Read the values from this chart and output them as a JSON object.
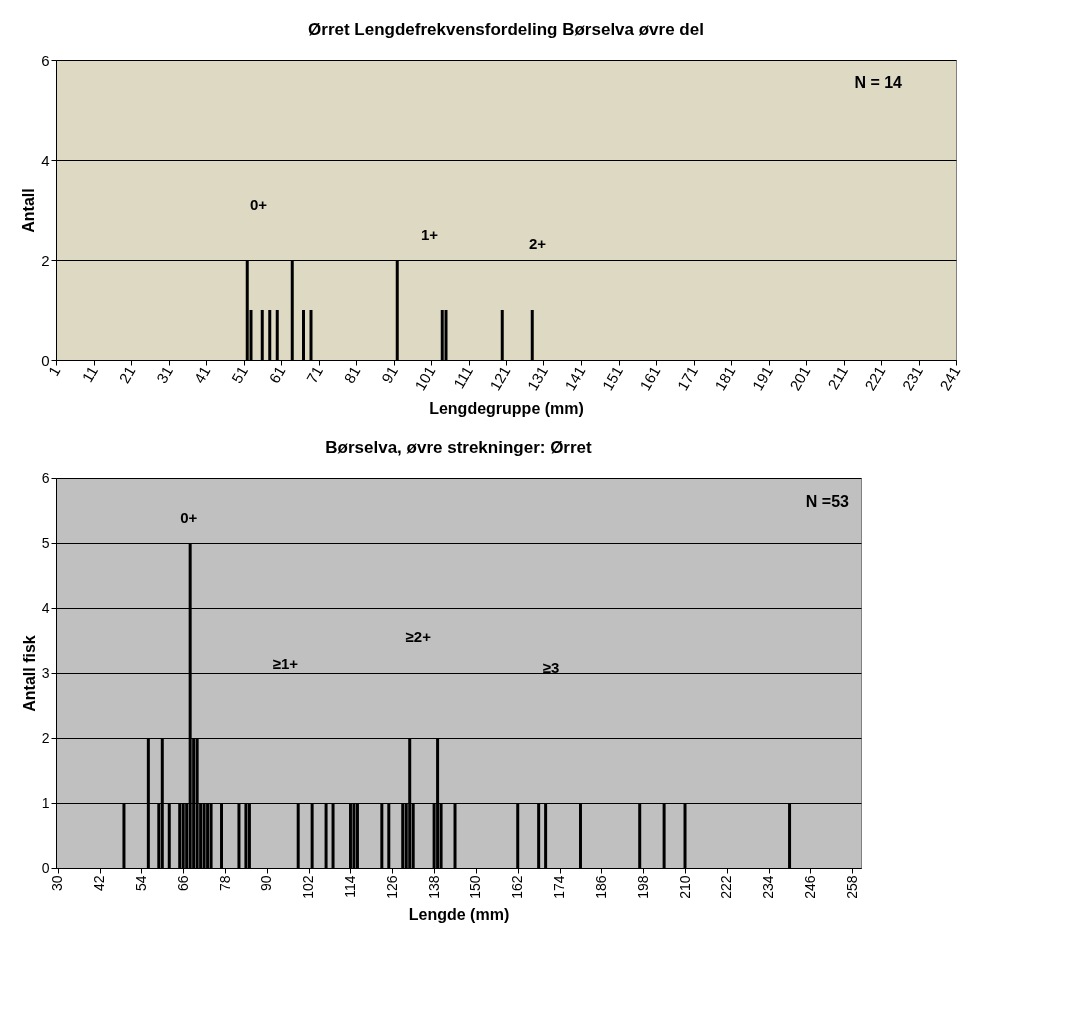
{
  "chart_data": [
    {
      "type": "bar",
      "title": "Ørret Lengdefrekvensfordeling Børselva øvre del",
      "xlabel": "Lengdegruppe (mm)",
      "ylabel": "Antall",
      "color": "#000000",
      "x": [
        52,
        53,
        56,
        58,
        60,
        64,
        67,
        69,
        92,
        104,
        105,
        120,
        128
      ],
      "values": [
        2,
        1,
        1,
        1,
        1,
        2,
        1,
        1,
        2,
        1,
        1,
        1,
        1
      ],
      "xlim": [
        1,
        241
      ],
      "xticks": [
        1,
        11,
        21,
        31,
        41,
        51,
        61,
        71,
        81,
        91,
        101,
        111,
        121,
        131,
        141,
        151,
        161,
        171,
        181,
        191,
        201,
        211,
        221,
        231,
        241
      ],
      "ylim": [
        0,
        6
      ],
      "yticks": [
        0,
        2,
        4,
        6
      ],
      "grid": "y",
      "annotations": [
        "N = 14",
        "0+",
        "1+",
        "2+"
      ]
    },
    {
      "type": "bar",
      "title": "Børselva, øvre strekninger: Ørret",
      "xlabel": "Lengde (mm)",
      "ylabel": "Antall fisk",
      "color": "#000000",
      "x": [
        49,
        56,
        59,
        60,
        62,
        65,
        66,
        67,
        68,
        69,
        70,
        71,
        72,
        73,
        74,
        77,
        82,
        84,
        85,
        99,
        103,
        107,
        109,
        114,
        115,
        116,
        123,
        125,
        129,
        130,
        131,
        132,
        138,
        139,
        140,
        144,
        162,
        168,
        170,
        180,
        197,
        204,
        210,
        240
      ],
      "values": [
        1,
        2,
        1,
        2,
        1,
        1,
        1,
        1,
        5,
        2,
        2,
        1,
        1,
        1,
        1,
        1,
        1,
        1,
        1,
        1,
        1,
        1,
        1,
        1,
        1,
        1,
        1,
        1,
        1,
        1,
        2,
        1,
        1,
        2,
        1,
        1,
        1,
        1,
        1,
        1,
        1,
        1,
        1,
        1
      ],
      "xlim": [
        29.5,
        260.5
      ],
      "xticks": [
        30,
        42,
        54,
        66,
        78,
        90,
        102,
        114,
        126,
        138,
        150,
        162,
        174,
        186,
        198,
        210,
        222,
        234,
        246,
        258
      ],
      "ylim": [
        0,
        6
      ],
      "yticks": [
        0,
        1,
        2,
        3,
        4,
        5,
        6
      ],
      "grid": "y",
      "annotations": [
        "N =53",
        "0+",
        "≥1+",
        "≥2+",
        "≥3"
      ]
    }
  ]
}
